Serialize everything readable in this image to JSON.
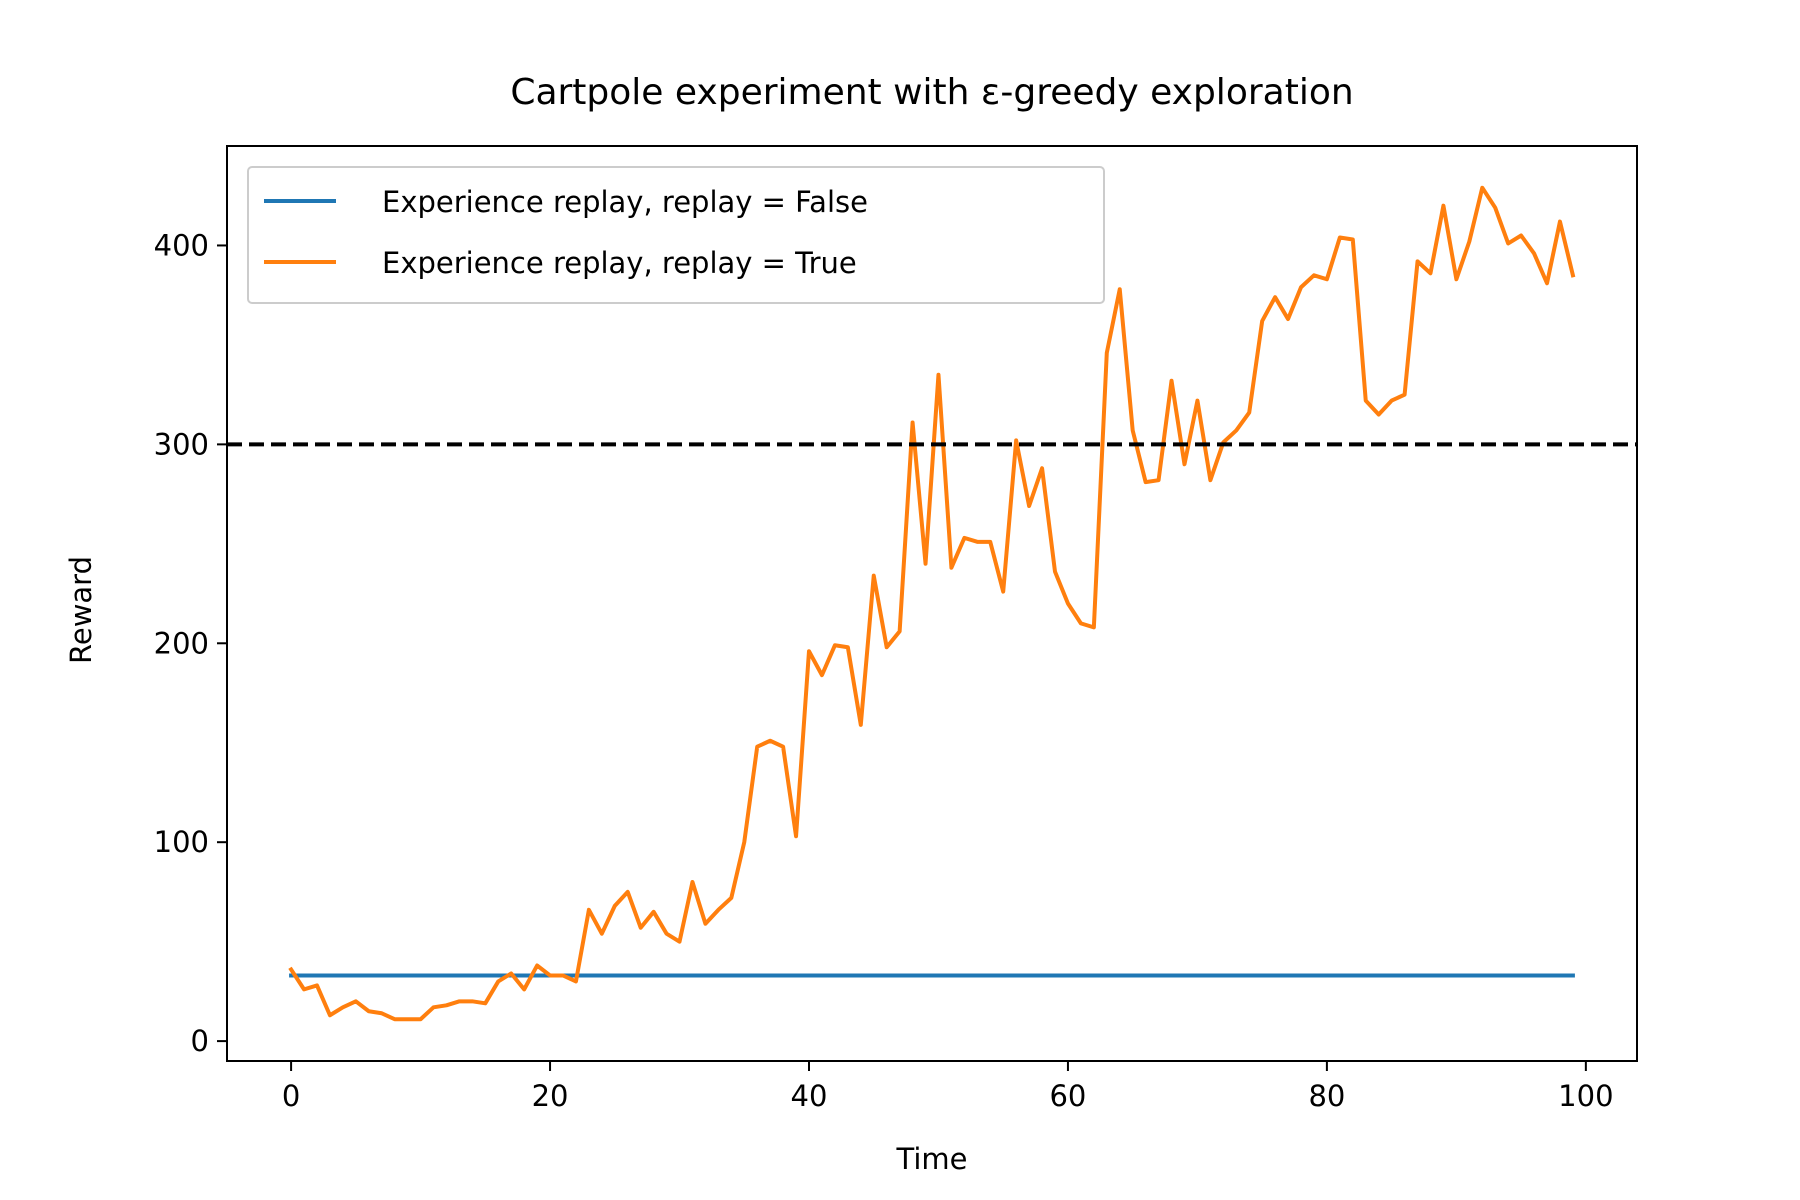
{
  "chart_data": {
    "type": "line",
    "title": "Cartpole experiment with ε-greedy exploration",
    "xlabel": "Time",
    "ylabel": "Reward",
    "xlim": [
      -4.95,
      103.95
    ],
    "ylim": [
      -10,
      450
    ],
    "xticks": [
      0,
      20,
      40,
      60,
      80,
      100
    ],
    "yticks": [
      0,
      100,
      200,
      300,
      400
    ],
    "grid": false,
    "legend_position": "top-left",
    "reference_line": {
      "y": 300,
      "style": "dashed",
      "color": "#000000"
    },
    "series": [
      {
        "name": "Experience replay, replay = False",
        "color": "#1f77b4",
        "x": [
          0,
          99
        ],
        "values": [
          33,
          33
        ]
      },
      {
        "name": "Experience replay, replay = True",
        "color": "#ff7f0e",
        "x": [
          0,
          1,
          2,
          3,
          4,
          5,
          6,
          7,
          8,
          9,
          10,
          11,
          12,
          13,
          14,
          15,
          16,
          17,
          18,
          19,
          20,
          21,
          22,
          23,
          24,
          25,
          26,
          27,
          28,
          29,
          30,
          31,
          32,
          33,
          34,
          35,
          36,
          37,
          38,
          39,
          40,
          41,
          42,
          43,
          44,
          45,
          46,
          47,
          48,
          49,
          50,
          51,
          52,
          53,
          54,
          55,
          56,
          57,
          58,
          59,
          60,
          61,
          62,
          63,
          64,
          65,
          66,
          67,
          68,
          69,
          70,
          71,
          72,
          73,
          74,
          75,
          76,
          77,
          78,
          79,
          80,
          81,
          82,
          83,
          84,
          85,
          86,
          87,
          88,
          89,
          90,
          91,
          92,
          93,
          94,
          95,
          96,
          97,
          98,
          99
        ],
        "values": [
          36,
          26,
          28,
          13,
          17,
          20,
          15,
          14,
          11,
          11,
          11,
          17,
          18,
          20,
          20,
          19,
          30,
          34,
          26,
          38,
          33,
          33,
          30,
          66,
          54,
          68,
          75,
          57,
          65,
          54,
          50,
          80,
          59,
          66,
          72,
          100,
          148,
          151,
          148,
          103,
          196,
          184,
          199,
          198,
          159,
          234,
          198,
          206,
          311,
          240,
          335,
          238,
          253,
          251,
          251,
          226,
          302,
          269,
          288,
          236,
          220,
          210,
          208,
          346,
          378,
          307,
          281,
          282,
          332,
          290,
          322,
          282,
          301,
          307,
          316,
          362,
          374,
          363,
          379,
          385,
          383,
          404,
          403,
          322,
          315,
          322,
          325,
          392,
          386,
          420,
          383,
          402,
          429,
          419,
          401,
          405,
          396,
          381,
          412,
          385
        ]
      }
    ]
  }
}
